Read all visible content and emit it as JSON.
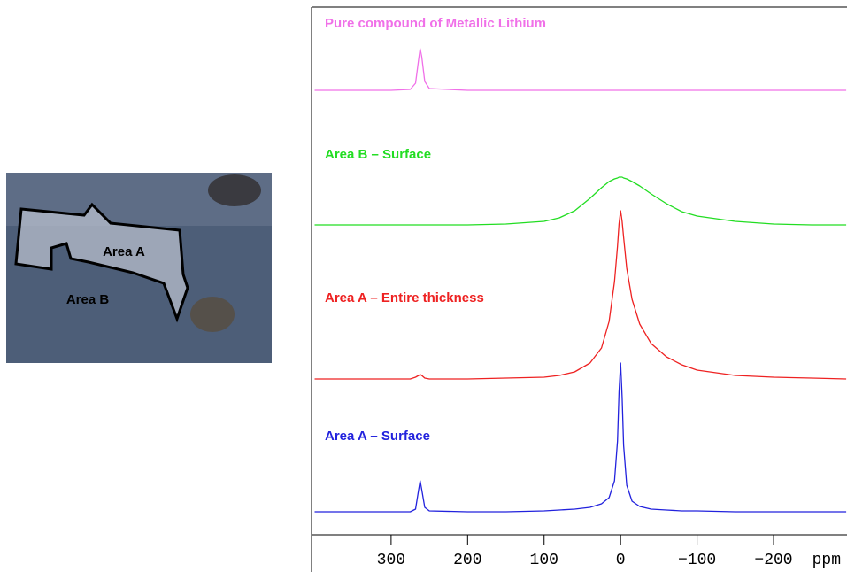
{
  "chart_data": {
    "type": "line",
    "xlabel": "ppm",
    "xlim": [
      404,
      -296
    ],
    "xticks": [
      300,
      200,
      100,
      0,
      {
        "value": -100,
        "label": "−100"
      },
      {
        "value": -200,
        "label": "−200"
      }
    ],
    "x": [
      400,
      300,
      275,
      268,
      264,
      262,
      260,
      256,
      250,
      200,
      150,
      100,
      80,
      60,
      40,
      25,
      15,
      8,
      4,
      2,
      0,
      -2,
      -4,
      -8,
      -15,
      -25,
      -40,
      -60,
      -80,
      -100,
      -150,
      -200,
      -250,
      -295
    ],
    "series": [
      {
        "name": "Pure compound of Metallic Lithium",
        "color": "#f070e8",
        "values": [
          0,
          0,
          1,
          8,
          35,
          47,
          38,
          10,
          2,
          0,
          0,
          0,
          0,
          0,
          0,
          0,
          0,
          0,
          0,
          0,
          0,
          0,
          0,
          0,
          0,
          0,
          0,
          0,
          0,
          0,
          0,
          0,
          0,
          0
        ]
      },
      {
        "name": "Area B – Surface",
        "color": "#22dd22",
        "values": [
          0,
          0,
          0,
          0,
          0,
          0,
          0,
          0,
          0,
          0,
          1,
          4,
          8,
          16,
          30,
          42,
          49,
          52,
          53,
          54,
          54,
          54,
          53,
          52,
          49,
          44,
          35,
          24,
          15,
          10,
          4,
          1,
          0,
          0
        ]
      },
      {
        "name": "Area A – Entire thickness",
        "color": "#ee2222",
        "values": [
          0,
          0,
          0,
          2,
          4,
          5,
          4,
          1,
          0,
          0,
          1,
          2,
          4,
          8,
          18,
          35,
          65,
          110,
          150,
          175,
          190,
          178,
          160,
          125,
          90,
          62,
          40,
          25,
          16,
          10,
          4,
          2,
          1,
          0
        ]
      },
      {
        "name": "Area A – Surface",
        "color": "#2222dd",
        "values": [
          0,
          0,
          0,
          3,
          25,
          35,
          25,
          5,
          1,
          0,
          0,
          1,
          2,
          3,
          5,
          9,
          16,
          35,
          80,
          135,
          168,
          130,
          75,
          30,
          12,
          6,
          3,
          2,
          1,
          1,
          0,
          0,
          0,
          0
        ]
      }
    ]
  },
  "photo": {
    "labels": [
      "Area A",
      "Area B"
    ]
  }
}
